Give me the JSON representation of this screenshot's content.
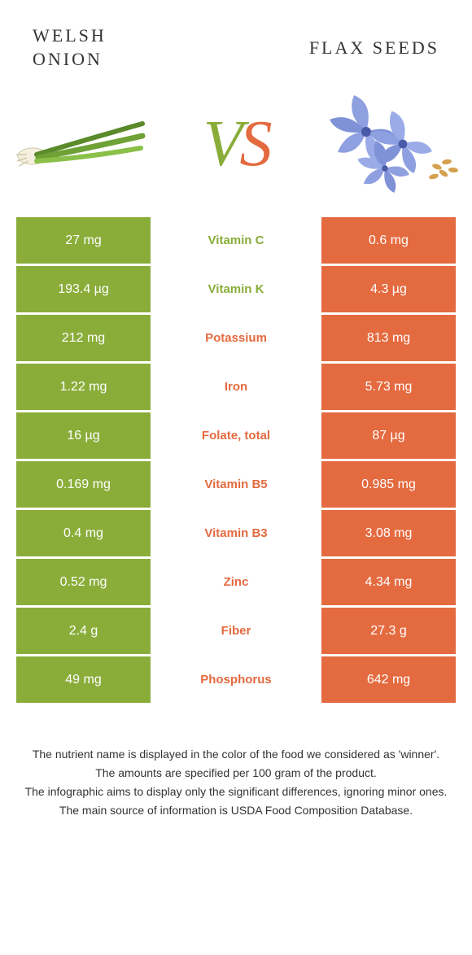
{
  "header": {
    "left_line1": "Welsh",
    "left_line2": "onion",
    "right": "Flax seeds"
  },
  "vs": {
    "v": "V",
    "s": "S"
  },
  "colors": {
    "green": "#8aad3a",
    "orange": "#e46a3f",
    "green_text": "#8aad3a",
    "orange_text": "#e46a3f"
  },
  "rows": [
    {
      "left": "27 mg",
      "label": "Vitamin C",
      "right": "0.6 mg",
      "winner": "green"
    },
    {
      "left": "193.4 µg",
      "label": "Vitamin K",
      "right": "4.3 µg",
      "winner": "green"
    },
    {
      "left": "212 mg",
      "label": "Potassium",
      "right": "813 mg",
      "winner": "orange"
    },
    {
      "left": "1.22 mg",
      "label": "Iron",
      "right": "5.73 mg",
      "winner": "orange"
    },
    {
      "left": "16 µg",
      "label": "Folate, total",
      "right": "87 µg",
      "winner": "orange"
    },
    {
      "left": "0.169 mg",
      "label": "Vitamin B5",
      "right": "0.985 mg",
      "winner": "orange"
    },
    {
      "left": "0.4 mg",
      "label": "Vitamin B3",
      "right": "3.08 mg",
      "winner": "orange"
    },
    {
      "left": "0.52 mg",
      "label": "Zinc",
      "right": "4.34 mg",
      "winner": "orange"
    },
    {
      "left": "2.4 g",
      "label": "Fiber",
      "right": "27.3 g",
      "winner": "orange"
    },
    {
      "left": "49 mg",
      "label": "Phosphorus",
      "right": "642 mg",
      "winner": "orange"
    }
  ],
  "footer": {
    "l1": "The nutrient name is displayed in the color of the food we considered as 'winner'.",
    "l2": "The amounts are specified per 100 gram of the product.",
    "l3": "The infographic aims to display only the significant differences, ignoring minor ones.",
    "l4": "The main source of information is USDA Food Composition Database."
  }
}
